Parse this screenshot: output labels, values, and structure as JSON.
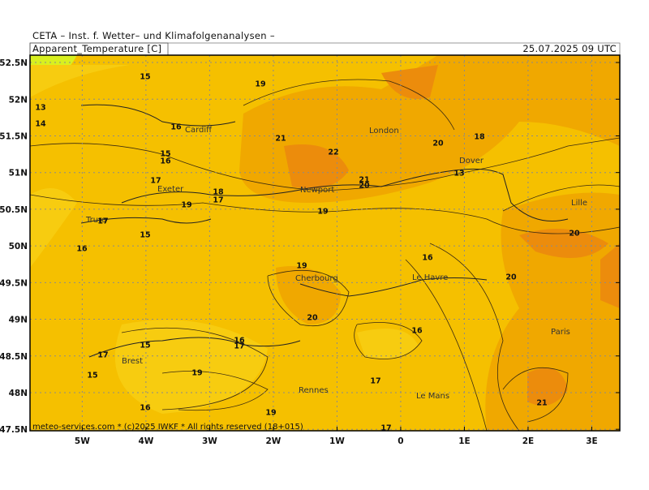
{
  "header": {
    "source": "CETA – Inst. f. Wetter– und Klimafolgenanalysen –",
    "variable": "Apparent_Temperature [C]",
    "datetime": "25.07.2025 09 UTC"
  },
  "footer": "meteo-services.com * (c)2025 IWKF * All rights reserved (18+015)",
  "map": {
    "xlim": [
      -5.82,
      3.44
    ],
    "ylim": [
      47.48,
      52.6
    ],
    "lat_ticks": [
      {
        "value": 52.5,
        "label": "52.5N"
      },
      {
        "value": 52,
        "label": "52N"
      },
      {
        "value": 51.5,
        "label": "51.5N"
      },
      {
        "value": 51,
        "label": "51N"
      },
      {
        "value": 50.5,
        "label": "50.5N"
      },
      {
        "value": 50,
        "label": "50N"
      },
      {
        "value": 49.5,
        "label": "49.5N"
      },
      {
        "value": 49,
        "label": "49N"
      },
      {
        "value": 48.5,
        "label": "48.5N"
      },
      {
        "value": 48,
        "label": "48N"
      },
      {
        "value": 47.5,
        "label": "47.5N"
      }
    ],
    "lon_ticks": [
      {
        "value": -5,
        "label": "5W"
      },
      {
        "value": -4,
        "label": "4W"
      },
      {
        "value": -3,
        "label": "3W"
      },
      {
        "value": -2,
        "label": "2W"
      },
      {
        "value": -1,
        "label": "1W"
      },
      0,
      {
        "value": 1,
        "label": "1E"
      },
      {
        "value": 2,
        "label": "2E"
      },
      {
        "value": 3,
        "label": "3E"
      }
    ],
    "grid": true,
    "cities": [
      "Cardiff",
      "London",
      "Dover",
      "Exeter",
      "Newport",
      "Lille",
      "Truro",
      "Cherbourg",
      "Le Havre",
      "Paris",
      "Brest",
      "Rennes",
      "Le Mans"
    ],
    "contour_labels": [
      15,
      19,
      13,
      14,
      16,
      21,
      22,
      18,
      20,
      15,
      16,
      13,
      17,
      21,
      20,
      18,
      19,
      17,
      19,
      17,
      15,
      16,
      20,
      16,
      19,
      20,
      20,
      16,
      15,
      16,
      17,
      17,
      15,
      19,
      17,
      16,
      19,
      21,
      17
    ]
  }
}
